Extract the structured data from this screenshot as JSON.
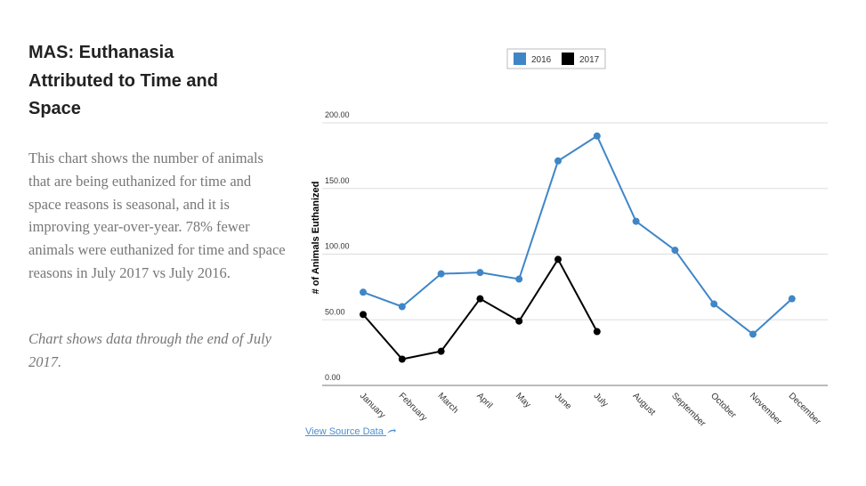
{
  "header": {
    "title": "MAS: Euthanasia Attributed to Time and Space"
  },
  "body": {
    "paragraphs": [
      "This chart shows the number of animals that are being euthanized for time and space reasons is seasonal, and it is improving year-over-year. 78% fewer animals were euthanized for time and space reasons in July 2017 vs July 2016.",
      "Chart shows data through the end of July 2017."
    ]
  },
  "chart_data": {
    "type": "line",
    "y_label": "# of Animals Euthanized",
    "categories": [
      "January",
      "February",
      "March",
      "April",
      "May",
      "June",
      "July",
      "August",
      "September",
      "October",
      "November",
      "December"
    ],
    "series": [
      {
        "name": "2016",
        "color": "#3f86c7",
        "values": [
          71,
          60,
          85,
          86,
          81,
          171,
          190,
          125,
          103,
          62,
          39,
          66
        ]
      },
      {
        "name": "2017",
        "color": "#000000",
        "values": [
          54,
          20,
          26,
          66,
          49,
          96,
          41,
          null,
          null,
          null,
          null,
          null
        ]
      }
    ],
    "ylim": [
      0,
      200
    ],
    "yticks": [
      {
        "value": 0,
        "label": "0.00"
      },
      {
        "value": 50,
        "label": "50.00"
      },
      {
        "value": 100,
        "label": "100.00"
      },
      {
        "value": 150,
        "label": "150.00"
      },
      {
        "value": 200,
        "label": "200.00"
      }
    ],
    "grid": true,
    "legend": "top"
  },
  "link": {
    "text": "View Source Data"
  }
}
